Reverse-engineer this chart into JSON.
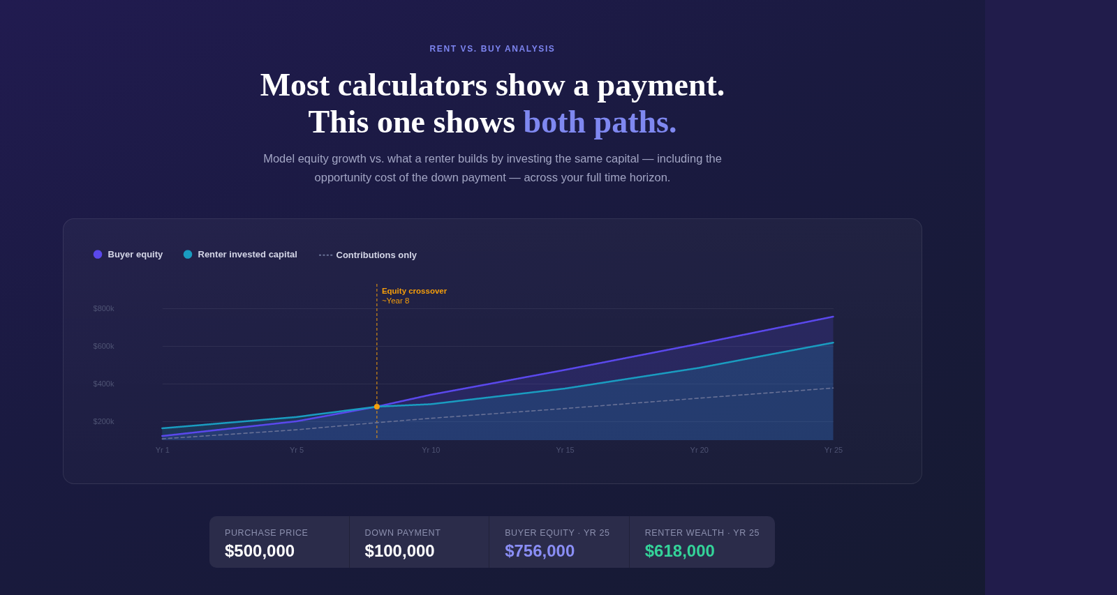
{
  "chart_data": [
    {
      "type": "line",
      "title": "Most calculators show a payment. This one shows both paths.",
      "subtitle": "Model equity growth vs. what a renter builds by investing the same capital — including the opportunity cost of the down payment — across your full time horizon.",
      "annotations": [
        "RENT VS. BUY ANALYSIS",
        "Equity crossover",
        "~Year 8"
      ],
      "categories": [
        "Yr 1",
        null,
        null,
        null,
        null,
        "Yr 5",
        null,
        null,
        null,
        null,
        "Yr 10",
        null,
        null,
        null,
        null,
        "Yr 15",
        null,
        null,
        null,
        null,
        "Yr 20",
        null,
        null,
        null,
        null,
        "Yr 25"
      ],
      "ylim": [
        100000,
        930000
      ],
      "yticks": [
        {
          "value": 200000,
          "label": "$200k"
        },
        {
          "value": 400000,
          "label": "$400k"
        },
        {
          "value": 600000,
          "label": "$600k"
        },
        {
          "value": 800000,
          "label": "$800k"
        }
      ],
      "grid": "y",
      "legend": "top left",
      "series": [
        {
          "name": "Buyer equity",
          "type": "area",
          "color": "#5a48ec",
          "values": [
            122000,
            null,
            null,
            null,
            null,
            200000,
            null,
            null,
            278000,
            null,
            341000,
            null,
            null,
            null,
            null,
            473000,
            null,
            null,
            null,
            null,
            612000,
            null,
            null,
            null,
            null,
            756000
          ]
        },
        {
          "name": "Renter invested capital",
          "type": "area",
          "color": "#1a9cc0",
          "values": [
            163000,
            null,
            null,
            null,
            null,
            223000,
            null,
            null,
            278000,
            null,
            291000,
            null,
            null,
            null,
            null,
            374000,
            null,
            null,
            null,
            null,
            484000,
            null,
            null,
            null,
            null,
            618000
          ]
        },
        {
          "name": "Contributions only",
          "type": "line",
          "line_style": "dashed",
          "color": "#687196",
          "values": [
            107000,
            null,
            null,
            null,
            null,
            155000,
            null,
            null,
            193000,
            null,
            216000,
            null,
            null,
            null,
            null,
            268000,
            null,
            null,
            null,
            null,
            323000,
            null,
            null,
            null,
            null,
            377000
          ]
        },
        {
          "type": "scatter",
          "marker": "circle",
          "color": "#f59e0b",
          "values": [
            null,
            null,
            null,
            null,
            null,
            null,
            null,
            null,
            278000,
            null,
            null,
            null,
            null,
            null,
            null,
            null,
            null,
            null,
            null,
            null,
            null,
            null,
            null,
            null,
            null,
            null
          ]
        }
      ]
    },
    {
      "type": "other",
      "annotations": [
        "PURCHASE PRICE",
        "$500,000",
        "DOWN PAYMENT",
        "$100,000",
        "BUYER EQUITY · YR 25",
        "$756,000",
        "RENTER WEALTH · YR 25",
        "$618,000"
      ],
      "colors": [
        "#ffffff",
        "#ffffff",
        "#8a8ef5",
        "#34d399"
      ]
    }
  ]
}
